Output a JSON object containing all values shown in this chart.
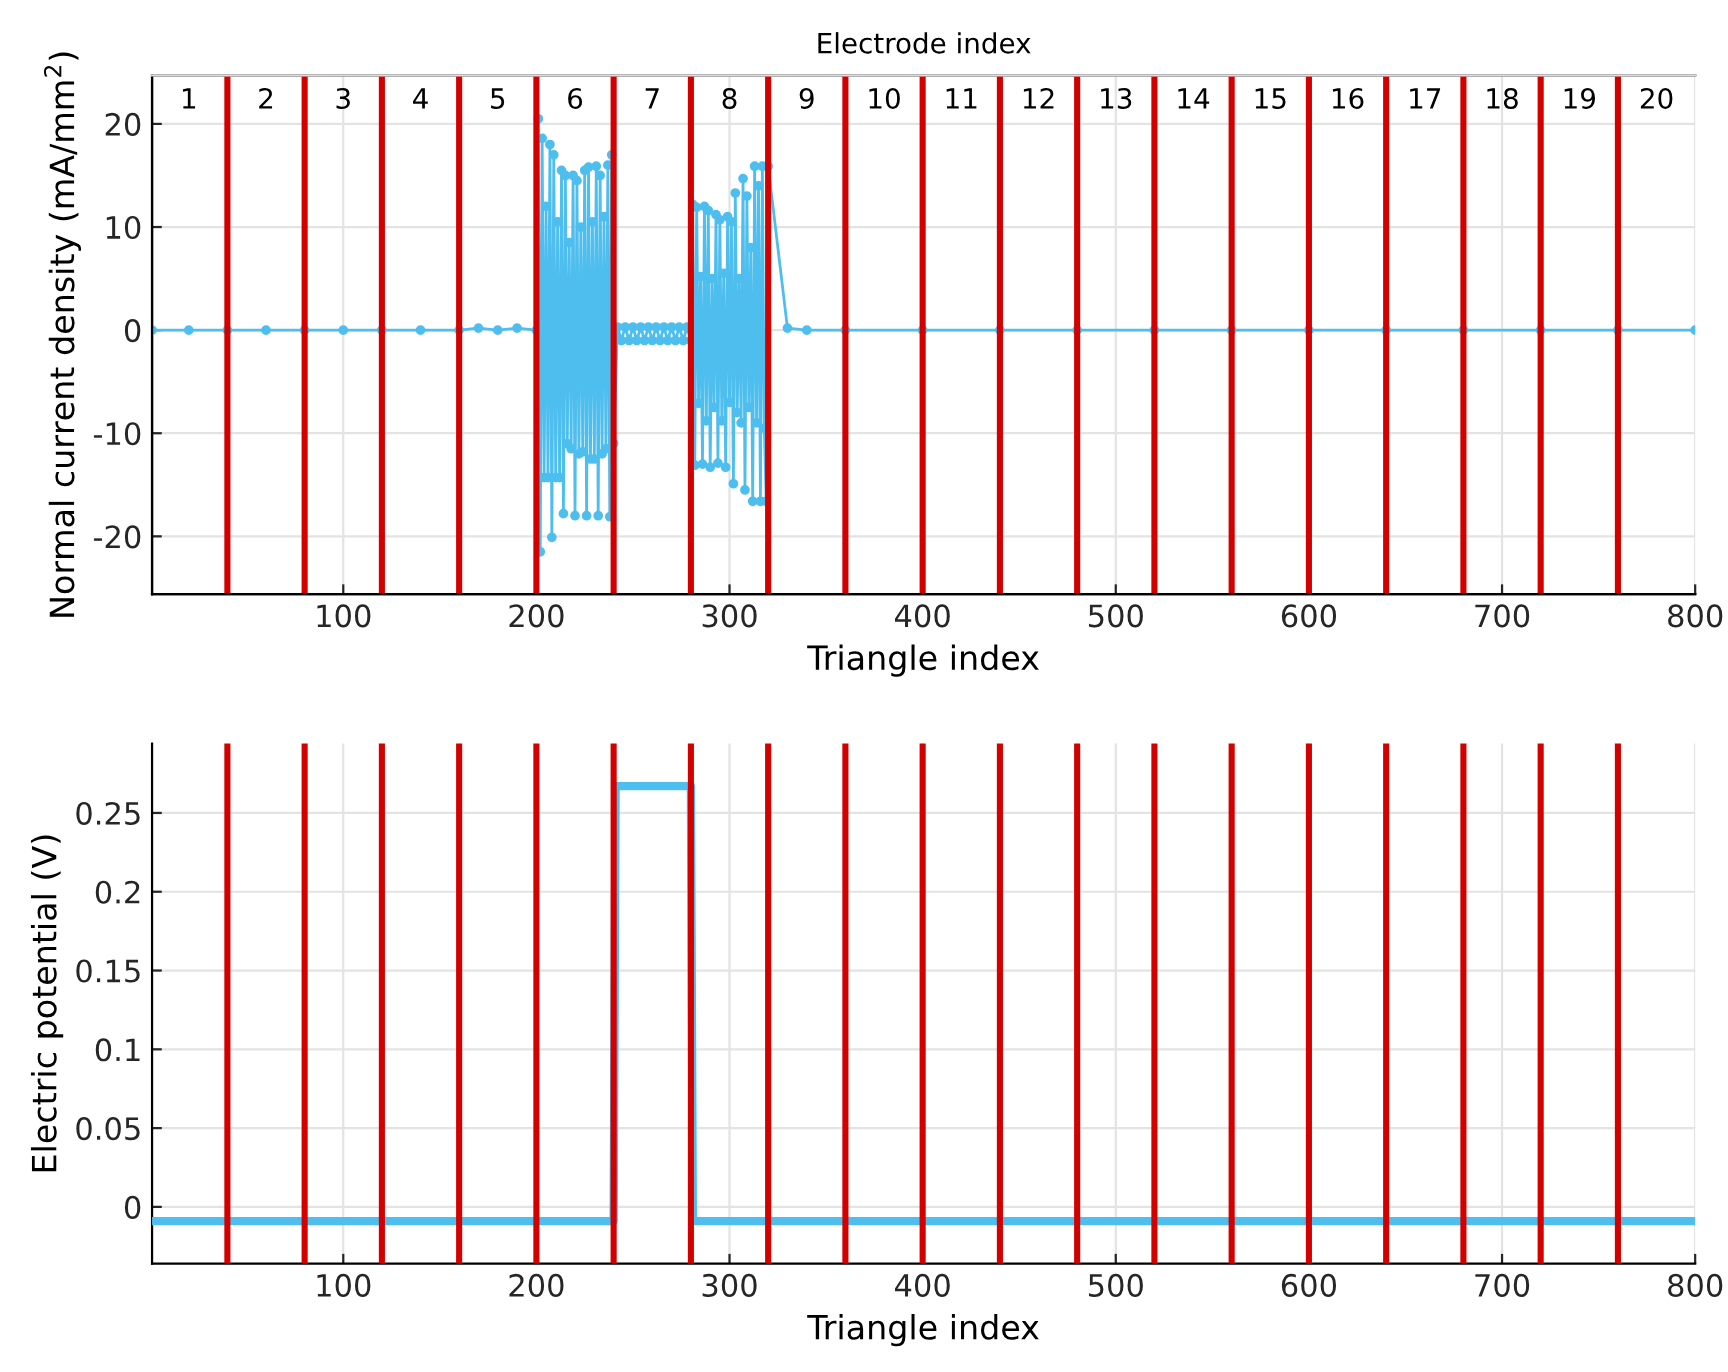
{
  "chart_data": [
    {
      "type": "line",
      "xlabel": "Triangle index",
      "ylabel": "Normal current density (mA/mm$^{2}$)",
      "x2label": "Electrode index",
      "xlim": [
        1,
        800
      ],
      "ylim": [
        -25.6,
        24.7
      ],
      "xticks": [
        100,
        200,
        300,
        400,
        500,
        600,
        700,
        800
      ],
      "yticks": [
        -20,
        -10,
        0,
        10,
        20
      ],
      "x2lim": [
        0.525,
        20.5
      ],
      "x2ticks": [
        1,
        2,
        3,
        4,
        5,
        6,
        7,
        8,
        9,
        10,
        11,
        12,
        13,
        14,
        15,
        16,
        17,
        18,
        19,
        20
      ],
      "grid": true,
      "marker": "circle",
      "line_style": "solid",
      "series": [
        {
          "color": "#4dbeee",
          "x": [
            1,
            20,
            40,
            60,
            80,
            100,
            120,
            140,
            160,
            170,
            180,
            190,
            200,
            201,
            202,
            203,
            204,
            205,
            206,
            207,
            208,
            209,
            210,
            211,
            212,
            213,
            214,
            215,
            216,
            217,
            218,
            219,
            220,
            221,
            222,
            223,
            224,
            225,
            226,
            227,
            228,
            229,
            230,
            231,
            232,
            233,
            234,
            235,
            236,
            237,
            238,
            239,
            240,
            242,
            244,
            246,
            248,
            250,
            252,
            254,
            256,
            258,
            260,
            262,
            264,
            266,
            268,
            270,
            272,
            274,
            276,
            278,
            280,
            281,
            282,
            283,
            284,
            285,
            286,
            287,
            288,
            289,
            290,
            291,
            292,
            293,
            294,
            295,
            296,
            297,
            298,
            299,
            300,
            301,
            302,
            303,
            304,
            305,
            306,
            307,
            308,
            309,
            310,
            311,
            312,
            313,
            314,
            315,
            316,
            317,
            318,
            319,
            320,
            330,
            340,
            360,
            400,
            440,
            480,
            520,
            560,
            600,
            640,
            680,
            720,
            760,
            800
          ],
          "values": [
            0,
            0,
            0,
            0,
            0,
            0,
            0,
            0,
            0,
            0.2,
            0,
            0.2,
            0,
            20.5,
            -21.5,
            18.6,
            -14.3,
            12.0,
            -14.3,
            18.0,
            -20.1,
            17.0,
            -14.3,
            10.5,
            -14.3,
            15.5,
            -17.8,
            15.0,
            -11.0,
            8.5,
            -11.5,
            15.0,
            -18.0,
            14.5,
            -12.0,
            10.0,
            -11.8,
            15.5,
            -18.0,
            15.8,
            -12.5,
            10.5,
            -12.5,
            15.9,
            -18.0,
            15.0,
            -12.0,
            11.0,
            -11.5,
            16.0,
            -18.1,
            17.0,
            -11.0,
            0.3,
            -1.0,
            0.3,
            -1.0,
            0.3,
            -1.0,
            0.3,
            -1.0,
            0.3,
            -1.0,
            0.3,
            -1.0,
            0.3,
            -1.0,
            0.3,
            -1.0,
            0.3,
            -1.0,
            0.3,
            -1.0,
            12.2,
            -13.1,
            11.9,
            -7.1,
            5.2,
            -13.0,
            12.0,
            -8.8,
            11.6,
            -13.3,
            5.0,
            -7.5,
            11.2,
            -12.9,
            10.7,
            -8.8,
            5.5,
            -13.3,
            11.0,
            -7.0,
            10.5,
            -14.9,
            13.3,
            -8.0,
            5.0,
            -9.0,
            14.7,
            -15.5,
            13.0,
            -7.5,
            8.0,
            -16.6,
            15.9,
            -9.0,
            14.0,
            -16.6,
            15.9,
            -9.5,
            -16.6,
            15.9,
            0.2,
            0,
            0,
            0,
            0,
            0,
            0,
            0,
            0,
            0,
            0,
            0,
            0,
            0
          ]
        }
      ],
      "ref_lines": [
        {
          "axis": "x",
          "value": 40,
          "color": "#d40000"
        },
        {
          "axis": "x",
          "value": 80,
          "color": "#d40000"
        },
        {
          "axis": "x",
          "value": 120,
          "color": "#d40000"
        },
        {
          "axis": "x",
          "value": 160,
          "color": "#d40000"
        },
        {
          "axis": "x",
          "value": 200,
          "color": "#d40000"
        },
        {
          "axis": "x",
          "value": 240,
          "color": "#d40000"
        },
        {
          "axis": "x",
          "value": 280,
          "color": "#d40000"
        },
        {
          "axis": "x",
          "value": 320,
          "color": "#d40000"
        },
        {
          "axis": "x",
          "value": 360,
          "color": "#d40000"
        },
        {
          "axis": "x",
          "value": 400,
          "color": "#d40000"
        },
        {
          "axis": "x",
          "value": 440,
          "color": "#d40000"
        },
        {
          "axis": "x",
          "value": 480,
          "color": "#d40000"
        },
        {
          "axis": "x",
          "value": 520,
          "color": "#d40000"
        },
        {
          "axis": "x",
          "value": 560,
          "color": "#d40000"
        },
        {
          "axis": "x",
          "value": 600,
          "color": "#d40000"
        },
        {
          "axis": "x",
          "value": 640,
          "color": "#d40000"
        },
        {
          "axis": "x",
          "value": 680,
          "color": "#d40000"
        },
        {
          "axis": "x",
          "value": 720,
          "color": "#d40000"
        },
        {
          "axis": "x",
          "value": 760,
          "color": "#d40000"
        }
      ]
    },
    {
      "type": "line",
      "xlabel": "Triangle index",
      "ylabel": "Electric potential (V)",
      "xlim": [
        1,
        800
      ],
      "ylim": [
        -0.036,
        0.294
      ],
      "xticks": [
        100,
        200,
        300,
        400,
        500,
        600,
        700,
        800
      ],
      "yticks": [
        0,
        0.05,
        0.1,
        0.15,
        0.2,
        0.25
      ],
      "grid": true,
      "line_style": "solid",
      "series": [
        {
          "color": "#4dbeee",
          "x": [
            1,
            240,
            241,
            280,
            281,
            800
          ],
          "values": [
            -0.009,
            -0.009,
            0.267,
            0.267,
            -0.009,
            -0.009
          ]
        }
      ],
      "ref_lines": [
        {
          "axis": "x",
          "value": 40,
          "color": "#d40000"
        },
        {
          "axis": "x",
          "value": 80,
          "color": "#d40000"
        },
        {
          "axis": "x",
          "value": 120,
          "color": "#d40000"
        },
        {
          "axis": "x",
          "value": 160,
          "color": "#d40000"
        },
        {
          "axis": "x",
          "value": 200,
          "color": "#d40000"
        },
        {
          "axis": "x",
          "value": 240,
          "color": "#d40000"
        },
        {
          "axis": "x",
          "value": 280,
          "color": "#d40000"
        },
        {
          "axis": "x",
          "value": 320,
          "color": "#d40000"
        },
        {
          "axis": "x",
          "value": 360,
          "color": "#d40000"
        },
        {
          "axis": "x",
          "value": 400,
          "color": "#d40000"
        },
        {
          "axis": "x",
          "value": 440,
          "color": "#d40000"
        },
        {
          "axis": "x",
          "value": 480,
          "color": "#d40000"
        },
        {
          "axis": "x",
          "value": 520,
          "color": "#d40000"
        },
        {
          "axis": "x",
          "value": 560,
          "color": "#d40000"
        },
        {
          "axis": "x",
          "value": 600,
          "color": "#d40000"
        },
        {
          "axis": "x",
          "value": 640,
          "color": "#d40000"
        },
        {
          "axis": "x",
          "value": 680,
          "color": "#d40000"
        },
        {
          "axis": "x",
          "value": 720,
          "color": "#d40000"
        },
        {
          "axis": "x",
          "value": 760,
          "color": "#d40000"
        }
      ]
    }
  ]
}
